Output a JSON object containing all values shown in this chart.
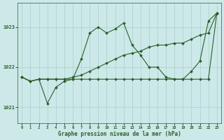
{
  "title": "Graphe pression niveau de la mer (hPa)",
  "bg_color": "#cce8e8",
  "grid_color": "#aacfcf",
  "line_color": "#2a5f2a",
  "xlim": [
    -0.5,
    23.5
  ],
  "ylim": [
    1020.6,
    1023.6
  ],
  "yticks": [
    1021,
    1022,
    1023
  ],
  "xticks": [
    0,
    1,
    2,
    3,
    4,
    5,
    6,
    7,
    8,
    9,
    10,
    11,
    12,
    13,
    14,
    15,
    16,
    17,
    18,
    19,
    20,
    21,
    22,
    23
  ],
  "series": [
    {
      "x": [
        0,
        1,
        2,
        3,
        4,
        5,
        6,
        7,
        8,
        9,
        10,
        11,
        12,
        13,
        14,
        15,
        16,
        17,
        18,
        19,
        20,
        21,
        22,
        23
      ],
      "y": [
        1021.75,
        1021.65,
        1021.7,
        1021.1,
        1021.5,
        1021.65,
        1021.7,
        1022.2,
        1022.85,
        1023.0,
        1022.85,
        1022.95,
        1023.1,
        1022.55,
        1022.3,
        1022.0,
        1022.0,
        1021.75,
        1021.7,
        1021.7,
        1021.9,
        1022.15,
        1023.15,
        1023.35
      ]
    },
    {
      "x": [
        0,
        1,
        2,
        3,
        4,
        5,
        6,
        7,
        8,
        9,
        10,
        11,
        12,
        13,
        14,
        15,
        16,
        17,
        18,
        19,
        20,
        21,
        22,
        23
      ],
      "y": [
        1021.75,
        1021.65,
        1021.7,
        1021.7,
        1021.7,
        1021.7,
        1021.75,
        1021.8,
        1021.9,
        1022.0,
        1022.1,
        1022.2,
        1022.3,
        1022.35,
        1022.4,
        1022.5,
        1022.55,
        1022.55,
        1022.6,
        1022.6,
        1022.7,
        1022.8,
        1022.85,
        1023.35
      ]
    },
    {
      "x": [
        0,
        1,
        2,
        3,
        4,
        5,
        6,
        7,
        8,
        9,
        10,
        11,
        12,
        13,
        14,
        15,
        16,
        17,
        18,
        19,
        20,
        21,
        22,
        23
      ],
      "y": [
        1021.75,
        1021.65,
        1021.7,
        1021.7,
        1021.7,
        1021.7,
        1021.7,
        1021.7,
        1021.7,
        1021.7,
        1021.7,
        1021.7,
        1021.7,
        1021.7,
        1021.7,
        1021.7,
        1021.7,
        1021.7,
        1021.7,
        1021.7,
        1021.7,
        1021.7,
        1021.7,
        1023.35
      ]
    }
  ]
}
